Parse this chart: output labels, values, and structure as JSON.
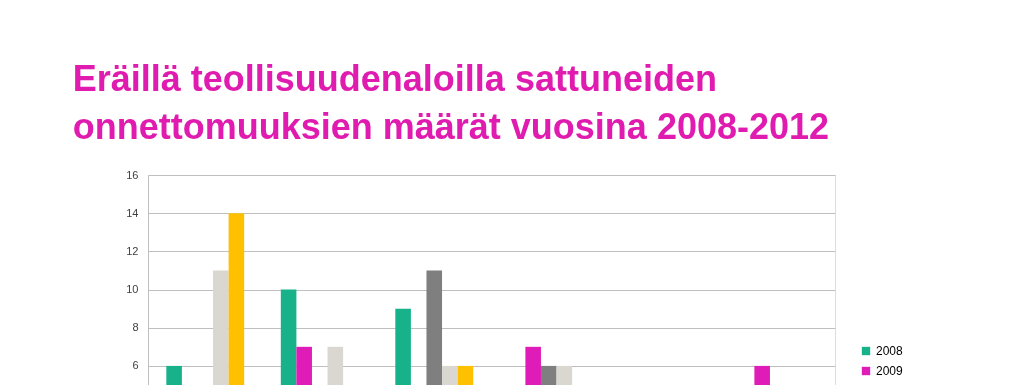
{
  "chart_data": {
    "type": "bar",
    "title": "Eräillä teollisuudenaloilla sattuneiden\nonnettomuuksien määrät vuosina 2008-2012",
    "categories": [
      null,
      null,
      null,
      null,
      null,
      null
    ],
    "series": [
      {
        "name": "2008",
        "color": "#17b18a",
        "values": [
          6,
          10,
          9,
          null,
          null,
          null
        ]
      },
      {
        "name": "2009",
        "color": "#e01cb8",
        "values": [
          null,
          7,
          null,
          7,
          null,
          6
        ]
      },
      {
        "color": "#7f7f7f",
        "values": [
          null,
          null,
          11,
          6,
          null,
          null
        ]
      },
      {
        "color": "#d9d7d0",
        "values": [
          11,
          7,
          6,
          6,
          null,
          null
        ]
      },
      {
        "color": "#ffc000",
        "values": [
          14,
          null,
          6,
          null,
          null,
          null
        ]
      }
    ],
    "ylim": [
      5,
      16
    ],
    "yticks": [
      6,
      8,
      10,
      12,
      14,
      16
    ],
    "grid": "y",
    "legend": "right",
    "tick_labels": "y"
  }
}
